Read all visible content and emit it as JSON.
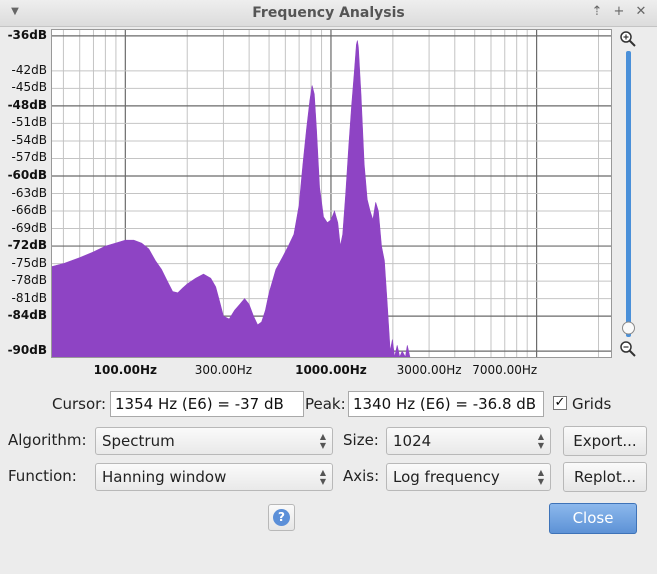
{
  "window": {
    "title": "Frequency Analysis",
    "controls": [
      {
        "name": "pin-icon",
        "glyph": "⇡"
      },
      {
        "name": "maximize-icon",
        "glyph": "+"
      },
      {
        "name": "close-window-icon",
        "glyph": "✕"
      }
    ]
  },
  "chart_data": {
    "type": "area",
    "color": "#8e44c4",
    "xscale": "log",
    "xlim": [
      44,
      23000
    ],
    "ylim": [
      -91,
      -35
    ],
    "y_ticks": [
      {
        "v": -36,
        "label": "-36dB",
        "major": true
      },
      {
        "v": -42,
        "label": "-42dB",
        "major": false
      },
      {
        "v": -45,
        "label": "-45dB",
        "major": false
      },
      {
        "v": -48,
        "label": "-48dB",
        "major": true
      },
      {
        "v": -51,
        "label": "-51dB",
        "major": false
      },
      {
        "v": -54,
        "label": "-54dB",
        "major": false
      },
      {
        "v": -57,
        "label": "-57dB",
        "major": false
      },
      {
        "v": -60,
        "label": "-60dB",
        "major": true
      },
      {
        "v": -63,
        "label": "-63dB",
        "major": false
      },
      {
        "v": -66,
        "label": "-66dB",
        "major": false
      },
      {
        "v": -69,
        "label": "-69dB",
        "major": false
      },
      {
        "v": -72,
        "label": "-72dB",
        "major": true
      },
      {
        "v": -75,
        "label": "-75dB",
        "major": false
      },
      {
        "v": -78,
        "label": "-78dB",
        "major": false
      },
      {
        "v": -81,
        "label": "-81dB",
        "major": false
      },
      {
        "v": -84,
        "label": "-84dB",
        "major": true
      },
      {
        "v": -90,
        "label": "-90dB",
        "major": true
      }
    ],
    "x_ticks": [
      {
        "v": 100,
        "label": "100.00Hz",
        "major": true
      },
      {
        "v": 300,
        "label": "300.00Hz",
        "major": false
      },
      {
        "v": 1000,
        "label": "1000.00Hz",
        "major": true
      },
      {
        "v": 3000,
        "label": "3000.00Hz",
        "major": false
      },
      {
        "v": 7000,
        "label": "7000.00Hz",
        "major": false
      }
    ],
    "points": [
      [
        44,
        -75.5
      ],
      [
        50,
        -75
      ],
      [
        60,
        -74
      ],
      [
        70,
        -73
      ],
      [
        80,
        -72
      ],
      [
        90,
        -71.5
      ],
      [
        100,
        -71
      ],
      [
        110,
        -71
      ],
      [
        120,
        -71.5
      ],
      [
        130,
        -72.5
      ],
      [
        140,
        -74.5
      ],
      [
        150,
        -76
      ],
      [
        160,
        -78
      ],
      [
        170,
        -79.8
      ],
      [
        180,
        -80
      ],
      [
        190,
        -79.2
      ],
      [
        200,
        -78.5
      ],
      [
        220,
        -77.5
      ],
      [
        240,
        -76.8
      ],
      [
        260,
        -77.5
      ],
      [
        275,
        -79
      ],
      [
        290,
        -82
      ],
      [
        300,
        -84
      ],
      [
        320,
        -84.5
      ],
      [
        340,
        -83
      ],
      [
        360,
        -82
      ],
      [
        380,
        -81
      ],
      [
        400,
        -82
      ],
      [
        420,
        -84
      ],
      [
        440,
        -85.5
      ],
      [
        460,
        -85
      ],
      [
        480,
        -83
      ],
      [
        500,
        -80
      ],
      [
        540,
        -76
      ],
      [
        580,
        -74
      ],
      [
        620,
        -72
      ],
      [
        660,
        -70
      ],
      [
        700,
        -65
      ],
      [
        730,
        -58
      ],
      [
        760,
        -52
      ],
      [
        790,
        -47
      ],
      [
        810,
        -44.5
      ],
      [
        830,
        -46
      ],
      [
        850,
        -52
      ],
      [
        880,
        -62
      ],
      [
        920,
        -67
      ],
      [
        960,
        -68
      ],
      [
        1000,
        -67.5
      ],
      [
        1040,
        -66
      ],
      [
        1080,
        -68
      ],
      [
        1110,
        -72
      ],
      [
        1140,
        -70
      ],
      [
        1180,
        -63
      ],
      [
        1220,
        -55
      ],
      [
        1260,
        -48
      ],
      [
        1300,
        -42
      ],
      [
        1330,
        -37.5
      ],
      [
        1345,
        -36.8
      ],
      [
        1360,
        -38
      ],
      [
        1400,
        -46
      ],
      [
        1450,
        -58
      ],
      [
        1500,
        -64
      ],
      [
        1550,
        -66
      ],
      [
        1600,
        -67.5
      ],
      [
        1650,
        -64.5
      ],
      [
        1700,
        -66
      ],
      [
        1760,
        -72
      ],
      [
        1820,
        -74.5
      ],
      [
        1880,
        -82
      ],
      [
        1940,
        -90
      ],
      [
        1990,
        -88
      ],
      [
        2040,
        -91
      ],
      [
        2100,
        -89
      ],
      [
        2160,
        -91
      ],
      [
        2220,
        -90
      ],
      [
        2300,
        -91
      ],
      [
        2350,
        -89
      ],
      [
        2420,
        -91
      ]
    ]
  },
  "controls": {
    "cursor_label": "Cursor:",
    "cursor_value": "1354 Hz (E6) = -37 dB",
    "peak_label": "Peak:",
    "peak_value": "1340 Hz (E6) = -36.8 dB",
    "grids_label": "Grids",
    "grids_checked": true,
    "algorithm_label": "Algorithm:",
    "algorithm_value": "Spectrum",
    "size_label": "Size:",
    "size_value": "1024",
    "function_label": "Function:",
    "function_value": "Hanning window",
    "axis_label": "Axis:",
    "axis_value": "Log frequency",
    "export_label": "Export...",
    "replot_label": "Replot...",
    "help_glyph": "?",
    "close_label": "Close"
  }
}
